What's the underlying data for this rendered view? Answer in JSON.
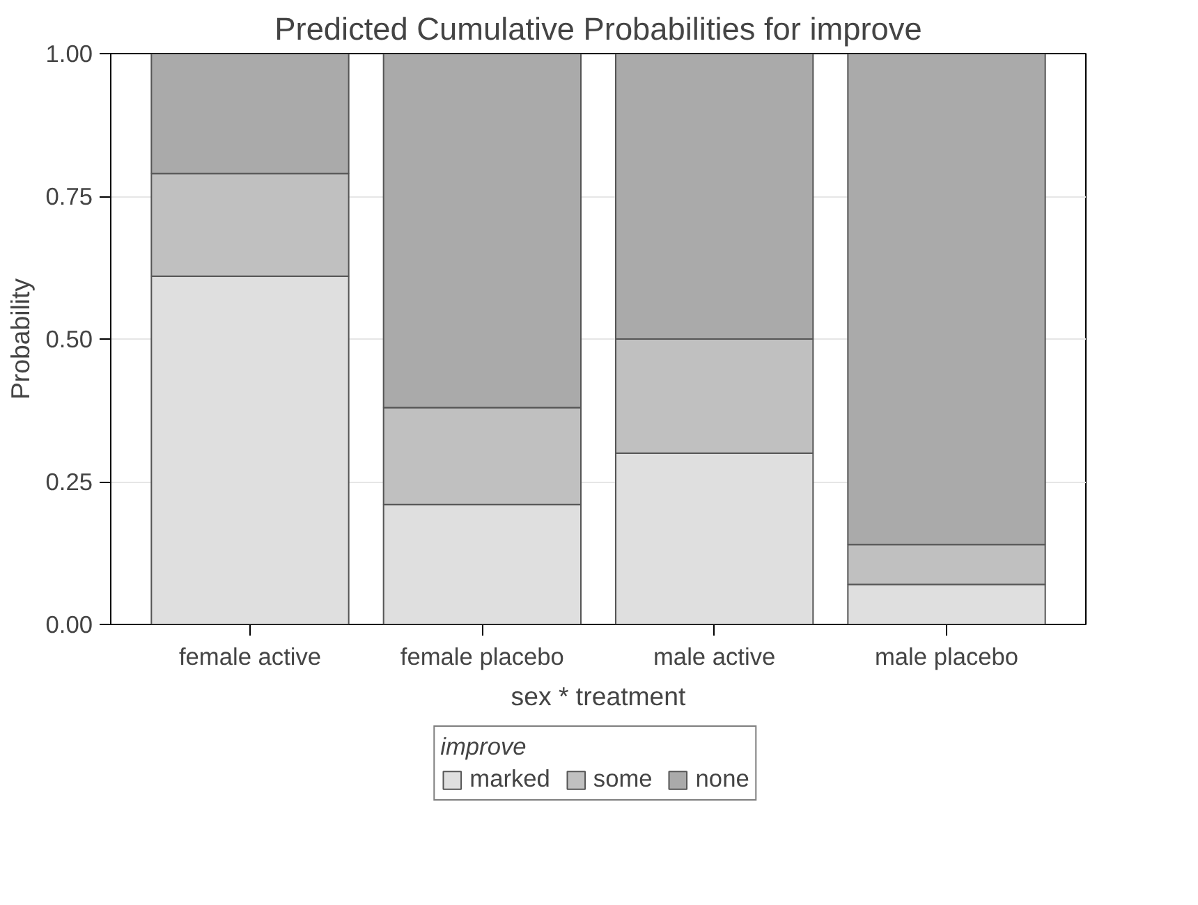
{
  "chart_data": {
    "type": "bar",
    "title": "Predicted Cumulative Probabilities for improve",
    "xlabel": "sex * treatment",
    "ylabel": "Probability",
    "legend_title": "improve",
    "categories": [
      "female active",
      "female placebo",
      "male active",
      "male placebo"
    ],
    "stacked": true,
    "series": [
      {
        "name": "marked",
        "color": "#dfdfdf",
        "values": [
          0.61,
          0.21,
          0.3,
          0.07
        ]
      },
      {
        "name": "some",
        "color": "#c0c0c0",
        "values": [
          0.18,
          0.17,
          0.2,
          0.07
        ]
      },
      {
        "name": "none",
        "color": "#aaaaaa",
        "values": [
          0.21,
          0.62,
          0.5,
          0.86
        ]
      }
    ],
    "ylim": [
      0,
      1.0
    ],
    "yticks": [
      {
        "value": 0,
        "label": "0.00"
      },
      {
        "value": 0.25,
        "label": "0.25"
      },
      {
        "value": 0.5,
        "label": "0.50"
      },
      {
        "value": 0.75,
        "label": "0.75"
      },
      {
        "value": 1.0,
        "label": "1.00"
      }
    ],
    "grid": "y",
    "legend": "bottom"
  }
}
